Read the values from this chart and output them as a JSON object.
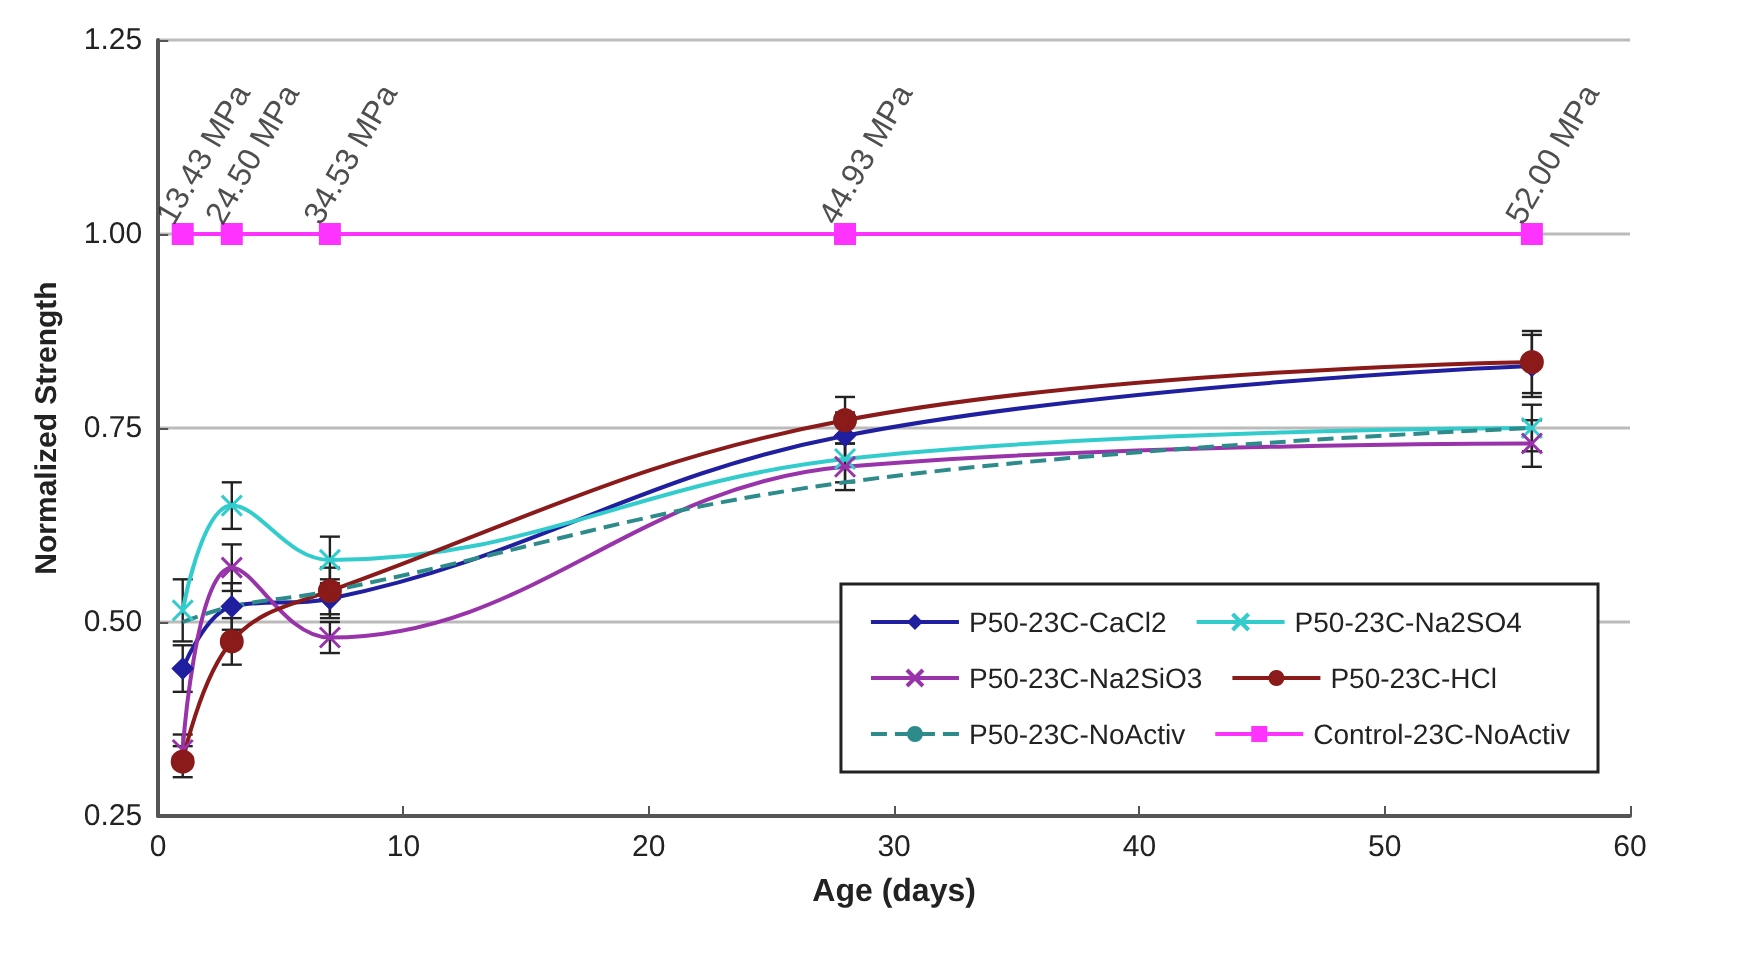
{
  "chart_data": {
    "type": "line",
    "xlabel": "Age (days)",
    "ylabel": "Normalized Strength",
    "x": [
      1,
      3,
      7,
      28,
      56
    ],
    "xlim": [
      0,
      60
    ],
    "xticks": [
      0,
      10,
      20,
      30,
      40,
      50,
      60
    ],
    "ylim": [
      0.25,
      1.25
    ],
    "yticks": [
      0.25,
      {
        "value": 0.5,
        "label": "0.50"
      },
      0.75,
      {
        "value": 1.0,
        "label": "1.00"
      },
      1.25
    ],
    "grid": "y",
    "legend": "bottom right",
    "series": [
      {
        "name": "P50-23C-CaCl2",
        "color": "#1f1f9f",
        "marker": "diamond",
        "values": [
          0.44,
          0.52,
          0.53,
          0.74,
          0.83
        ],
        "errors": [
          0.03,
          0.03,
          0.025,
          0.03,
          0.04
        ]
      },
      {
        "name": "P50-23C-Na2SO4",
        "color": "#33cccc",
        "marker": "cross",
        "values": [
          0.515,
          0.65,
          0.58,
          0.71,
          0.75
        ],
        "errors": [
          0.04,
          0.03,
          0.03,
          0.03,
          0.03
        ]
      },
      {
        "name": "P50-23C-Na2SiO3",
        "color": "#9933aa",
        "marker": "cross",
        "values": [
          0.335,
          0.57,
          0.48,
          0.7,
          0.73
        ],
        "errors": [
          0.02,
          0.03,
          0.02,
          0.03,
          0.03
        ]
      },
      {
        "name": "P50-23C-HCl",
        "color": "#8b1a1a",
        "marker": "circle",
        "values": [
          0.32,
          0.475,
          0.54,
          0.76,
          0.835
        ],
        "errors": [
          0.02,
          0.03,
          0.03,
          0.03,
          0.04
        ]
      },
      {
        "name": "P50-23C-NoActiv",
        "color": "#2e8b8b",
        "marker": "none",
        "line_style": "dashed",
        "values": [
          0.5,
          0.52,
          0.54,
          0.68,
          0.75
        ]
      },
      {
        "name": "Control-23C-NoActiv",
        "color": "#ff33ff",
        "marker": "square",
        "values": [
          1.0,
          1.0,
          1.0,
          1.0,
          1.0
        ]
      }
    ],
    "annotations": [
      {
        "text": "13.43 MPa",
        "x": 1,
        "y": 1.0
      },
      {
        "text": "24.50 MPa",
        "x": 3,
        "y": 1.0
      },
      {
        "text": "34.53 MPa",
        "x": 7,
        "y": 1.0
      },
      {
        "text": "44.93 MPa",
        "x": 28,
        "y": 1.0
      },
      {
        "text": "52.00 MPa",
        "x": 56,
        "y": 1.0
      }
    ]
  }
}
